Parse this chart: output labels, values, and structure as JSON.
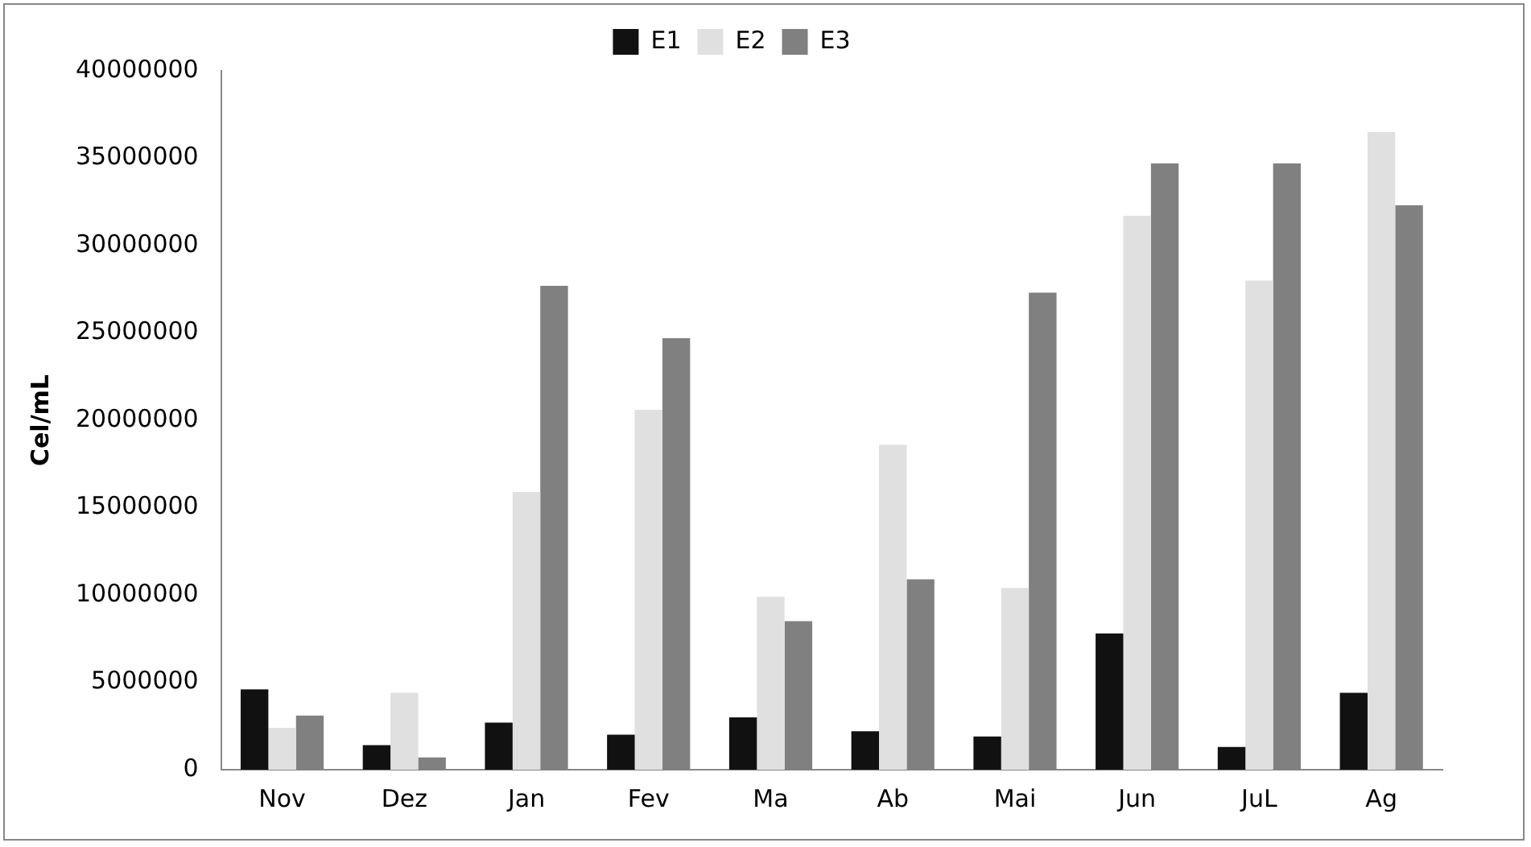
{
  "chart_data": {
    "type": "bar",
    "ylabel": "Cel/mL",
    "categories": [
      "Nov",
      "Dez",
      "Jan",
      "Fev",
      "Ma",
      "Ab",
      "Mai",
      "Jun",
      "JuL",
      "Ag"
    ],
    "series": [
      {
        "name": "E1",
        "color": "#111111",
        "values": [
          4600000,
          1400000,
          2700000,
          2000000,
          3000000,
          2200000,
          1900000,
          7800000,
          1300000,
          4400000
        ]
      },
      {
        "name": "E2",
        "color": "#e0e0e0",
        "values": [
          2400000,
          4400000,
          15900000,
          20600000,
          9900000,
          18600000,
          10400000,
          31700000,
          28000000,
          36500000
        ]
      },
      {
        "name": "E3",
        "color": "#808080",
        "values": [
          3100000,
          700000,
          27700000,
          24700000,
          8500000,
          10900000,
          27300000,
          34700000,
          34700000,
          32300000
        ]
      }
    ],
    "ylim": [
      0,
      40000000
    ],
    "yticks": [
      0,
      5000000,
      10000000,
      15000000,
      20000000,
      25000000,
      30000000,
      35000000,
      40000000
    ],
    "grid": false,
    "legend": "top"
  }
}
